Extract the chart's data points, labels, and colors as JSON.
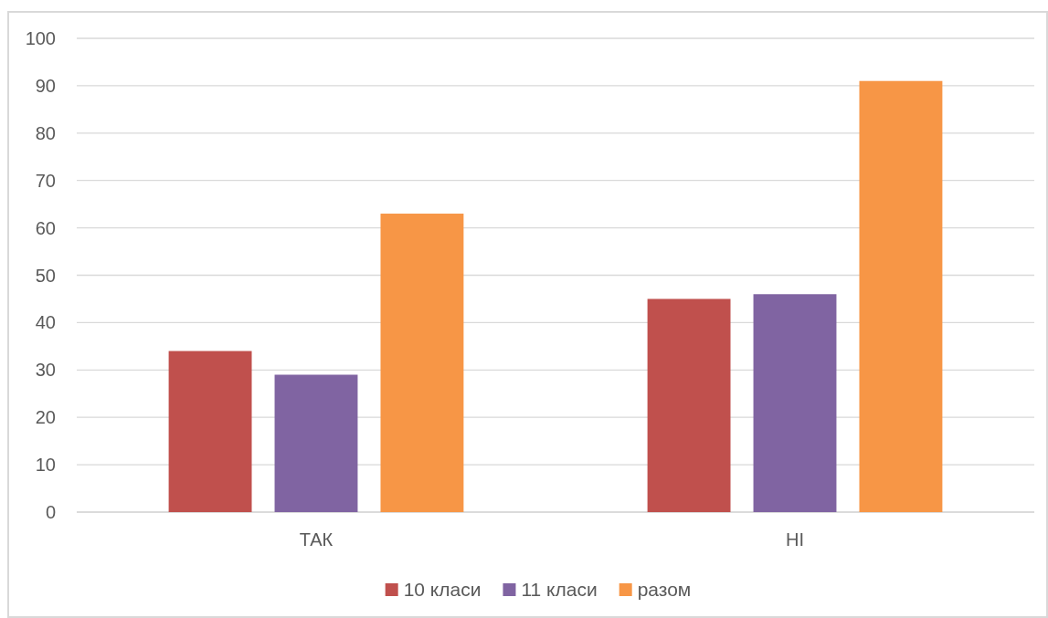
{
  "chart_data": {
    "type": "bar",
    "categories": [
      "ТАК",
      "НІ"
    ],
    "series": [
      {
        "name": "10 класи",
        "color": "#c0504d",
        "values": [
          34,
          45
        ]
      },
      {
        "name": "11 класи",
        "color": "#8064a2",
        "values": [
          29,
          46
        ]
      },
      {
        "name": "разом",
        "color": "#f79646",
        "values": [
          63,
          91
        ]
      }
    ],
    "ylim": [
      0,
      100
    ],
    "yticks": [
      0,
      10,
      20,
      30,
      40,
      50,
      60,
      70,
      80,
      90,
      100
    ],
    "grid": "y",
    "legend": "bottom"
  }
}
